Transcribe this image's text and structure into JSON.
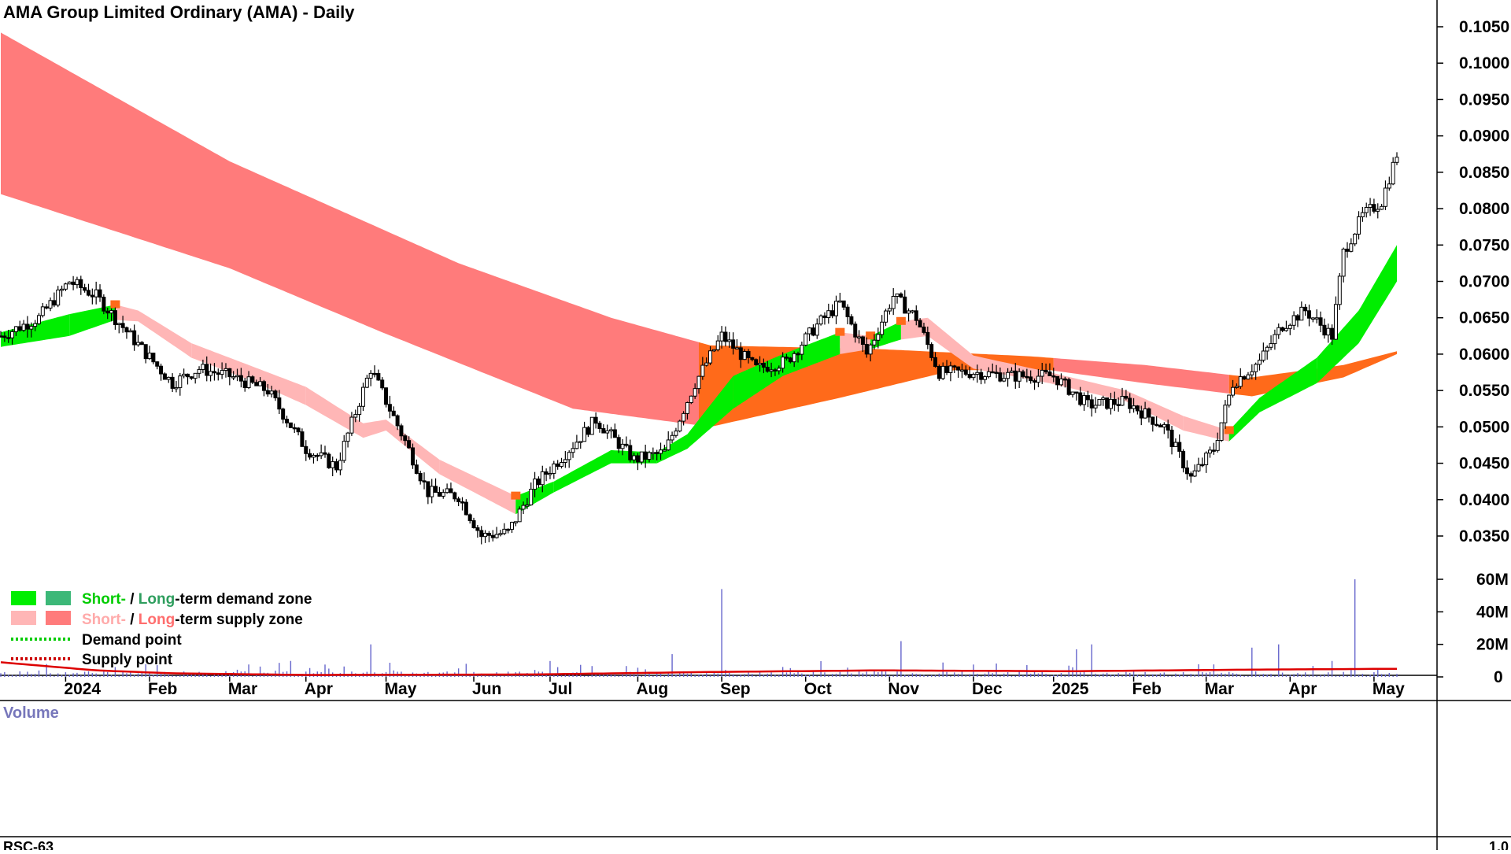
{
  "header": {
    "title": "AMA Group Limited Ordinary (AMA) - Daily"
  },
  "legend": {
    "demand_zone": {
      "short": "Short-",
      "sep": " / ",
      "long": "Long",
      "rest": "-term demand zone"
    },
    "supply_zone": {
      "short": "Short-",
      "sep": " / ",
      "long": "Long",
      "rest": "-term supply zone"
    },
    "demand_point": "Demand point",
    "supply_point": "Supply point"
  },
  "volume_panel": {
    "label": "Volume",
    "ticks": [
      "60M",
      "40M",
      "20M",
      "0"
    ]
  },
  "lower_panel": {
    "label": "RSC-63",
    "tick": "1.0"
  },
  "colors": {
    "short_demand": "#00ee00",
    "long_demand": "#3cb878",
    "short_supply": "#ffb6b6",
    "long_supply": "#ff7b7b",
    "long_orange": "#ff6a1a",
    "candle": "#000000",
    "volume_bar": "#6666cc",
    "volume_avg": "#dd0000",
    "demand_point": "#00cc00",
    "supply_point": "#cc0000"
  },
  "chart_data": {
    "type": "candlestick",
    "title": "AMA Group Limited Ordinary (AMA) - Daily",
    "x_axis": {
      "labels": [
        "2024",
        "Feb",
        "Mar",
        "Apr",
        "May",
        "Jun",
        "Jul",
        "Aug",
        "Sep",
        "Oct",
        "Nov",
        "Dec",
        "2025",
        "Feb",
        "Mar",
        "Apr",
        "May"
      ],
      "label_day_index": [
        17,
        39,
        60,
        80,
        101,
        124,
        144,
        167,
        189,
        211,
        233,
        255,
        276,
        297,
        316,
        338,
        360
      ]
    },
    "y_axis": {
      "ticks": [
        "0.1050",
        "0.1000",
        "0.0950",
        "0.0900",
        "0.0850",
        "0.0800",
        "0.0750",
        "0.0700",
        "0.0650",
        "0.0600",
        "0.0550",
        "0.0500",
        "0.0450",
        "0.0400",
        "0.0350"
      ],
      "range": [
        0.0315,
        0.107
      ]
    },
    "price_closes": [
      {
        "day": 0,
        "close": 0.0625
      },
      {
        "day": 10,
        "close": 0.065
      },
      {
        "day": 18,
        "close": 0.07
      },
      {
        "day": 25,
        "close": 0.068
      },
      {
        "day": 34,
        "close": 0.0625
      },
      {
        "day": 45,
        "close": 0.056
      },
      {
        "day": 52,
        "close": 0.058
      },
      {
        "day": 60,
        "close": 0.057
      },
      {
        "day": 70,
        "close": 0.055
      },
      {
        "day": 80,
        "close": 0.047
      },
      {
        "day": 88,
        "close": 0.0445
      },
      {
        "day": 97,
        "close": 0.058
      },
      {
        "day": 106,
        "close": 0.048
      },
      {
        "day": 112,
        "close": 0.041
      },
      {
        "day": 120,
        "close": 0.0405
      },
      {
        "day": 126,
        "close": 0.035
      },
      {
        "day": 133,
        "close": 0.0355
      },
      {
        "day": 140,
        "close": 0.042
      },
      {
        "day": 150,
        "close": 0.0475
      },
      {
        "day": 156,
        "close": 0.051
      },
      {
        "day": 166,
        "close": 0.0455
      },
      {
        "day": 174,
        "close": 0.0465
      },
      {
        "day": 182,
        "close": 0.056
      },
      {
        "day": 189,
        "close": 0.0625
      },
      {
        "day": 198,
        "close": 0.058
      },
      {
        "day": 206,
        "close": 0.059
      },
      {
        "day": 214,
        "close": 0.064
      },
      {
        "day": 220,
        "close": 0.067
      },
      {
        "day": 227,
        "close": 0.06
      },
      {
        "day": 234,
        "close": 0.068
      },
      {
        "day": 240,
        "close": 0.065
      },
      {
        "day": 246,
        "close": 0.0575
      },
      {
        "day": 255,
        "close": 0.0575
      },
      {
        "day": 265,
        "close": 0.057
      },
      {
        "day": 276,
        "close": 0.057
      },
      {
        "day": 285,
        "close": 0.053
      },
      {
        "day": 295,
        "close": 0.0535
      },
      {
        "day": 305,
        "close": 0.05
      },
      {
        "day": 312,
        "close": 0.043
      },
      {
        "day": 318,
        "close": 0.047
      },
      {
        "day": 323,
        "close": 0.056
      },
      {
        "day": 330,
        "close": 0.059
      },
      {
        "day": 336,
        "close": 0.064
      },
      {
        "day": 342,
        "close": 0.066
      },
      {
        "day": 349,
        "close": 0.0625
      },
      {
        "day": 352,
        "close": 0.074
      },
      {
        "day": 357,
        "close": 0.079
      },
      {
        "day": 362,
        "close": 0.081
      },
      {
        "day": 366,
        "close": 0.0875
      }
    ],
    "long_term_band": {
      "top": [
        {
          "day": 0,
          "v": 0.1042
        },
        {
          "day": 60,
          "v": 0.0865
        },
        {
          "day": 120,
          "v": 0.0725
        },
        {
          "day": 160,
          "v": 0.065
        },
        {
          "day": 186,
          "v": 0.0612
        },
        {
          "day": 230,
          "v": 0.0607
        },
        {
          "day": 270,
          "v": 0.0597
        },
        {
          "day": 300,
          "v": 0.0585
        },
        {
          "day": 328,
          "v": 0.0568
        },
        {
          "day": 352,
          "v": 0.0585
        },
        {
          "day": 366,
          "v": 0.0604
        }
      ],
      "bottom": [
        {
          "day": 0,
          "v": 0.082
        },
        {
          "day": 60,
          "v": 0.0718
        },
        {
          "day": 100,
          "v": 0.063
        },
        {
          "day": 150,
          "v": 0.0525
        },
        {
          "day": 186,
          "v": 0.05
        },
        {
          "day": 220,
          "v": 0.054
        },
        {
          "day": 250,
          "v": 0.0578
        },
        {
          "day": 275,
          "v": 0.0578
        },
        {
          "day": 300,
          "v": 0.056
        },
        {
          "day": 328,
          "v": 0.0542
        },
        {
          "day": 352,
          "v": 0.0568
        },
        {
          "day": 366,
          "v": 0.06
        }
      ],
      "switch_day": 183
    },
    "short_term_band": [
      {
        "day": 0,
        "top": 0.063,
        "bottom": 0.0615,
        "zone": "demand"
      },
      {
        "day": 18,
        "top": 0.0655,
        "bottom": 0.063,
        "zone": "demand"
      },
      {
        "day": 30,
        "top": 0.0668,
        "bottom": 0.0652,
        "zone": "demand"
      },
      {
        "day": 36,
        "top": 0.066,
        "bottom": 0.065,
        "zone": "supply"
      },
      {
        "day": 50,
        "top": 0.0615,
        "bottom": 0.06,
        "zone": "supply"
      },
      {
        "day": 65,
        "top": 0.0585,
        "bottom": 0.057,
        "zone": "supply"
      },
      {
        "day": 80,
        "top": 0.0555,
        "bottom": 0.0535,
        "zone": "supply"
      },
      {
        "day": 95,
        "top": 0.0505,
        "bottom": 0.049,
        "zone": "supply"
      },
      {
        "day": 101,
        "top": 0.051,
        "bottom": 0.05,
        "zone": "supply"
      },
      {
        "day": 115,
        "top": 0.0455,
        "bottom": 0.044,
        "zone": "supply"
      },
      {
        "day": 135,
        "top": 0.0405,
        "bottom": 0.0385,
        "zone": "supply"
      },
      {
        "day": 145,
        "top": 0.0425,
        "bottom": 0.0415,
        "zone": "demand"
      },
      {
        "day": 160,
        "top": 0.0468,
        "bottom": 0.0455,
        "zone": "demand"
      },
      {
        "day": 172,
        "top": 0.0465,
        "bottom": 0.0455,
        "zone": "demand"
      },
      {
        "day": 180,
        "top": 0.049,
        "bottom": 0.0475,
        "zone": "demand"
      },
      {
        "day": 192,
        "top": 0.057,
        "bottom": 0.053,
        "zone": "demand"
      },
      {
        "day": 205,
        "top": 0.06,
        "bottom": 0.0575,
        "zone": "demand"
      },
      {
        "day": 220,
        "top": 0.063,
        "bottom": 0.0605,
        "zone": "demand"
      },
      {
        "day": 228,
        "top": 0.0625,
        "bottom": 0.0612,
        "zone": "supply"
      },
      {
        "day": 236,
        "top": 0.0645,
        "bottom": 0.0625,
        "zone": "demand"
      },
      {
        "day": 243,
        "top": 0.065,
        "bottom": 0.063,
        "zone": "supply"
      },
      {
        "day": 255,
        "top": 0.0598,
        "bottom": 0.0585,
        "zone": "supply"
      },
      {
        "day": 275,
        "top": 0.0575,
        "bottom": 0.0565,
        "zone": "supply"
      },
      {
        "day": 295,
        "top": 0.055,
        "bottom": 0.054,
        "zone": "supply"
      },
      {
        "day": 310,
        "top": 0.0515,
        "bottom": 0.05,
        "zone": "supply"
      },
      {
        "day": 322,
        "top": 0.0495,
        "bottom": 0.0485,
        "zone": "supply"
      },
      {
        "day": 330,
        "top": 0.054,
        "bottom": 0.0525,
        "zone": "demand"
      },
      {
        "day": 345,
        "top": 0.0595,
        "bottom": 0.0565,
        "zone": "demand"
      },
      {
        "day": 356,
        "top": 0.066,
        "bottom": 0.062,
        "zone": "demand"
      },
      {
        "day": 366,
        "top": 0.075,
        "bottom": 0.0705,
        "zone": "demand"
      }
    ],
    "volume": {
      "spikes_millions": [
        {
          "day": 97,
          "v": 20
        },
        {
          "day": 189,
          "v": 54
        },
        {
          "day": 176,
          "v": 14
        },
        {
          "day": 236,
          "v": 22
        },
        {
          "day": 282,
          "v": 17
        },
        {
          "day": 286,
          "v": 20
        },
        {
          "day": 328,
          "v": 18
        },
        {
          "day": 335,
          "v": 20
        },
        {
          "day": 355,
          "v": 60
        }
      ],
      "ylim": [
        0,
        60
      ]
    },
    "grid": false,
    "legend_position": "bottom-left"
  }
}
